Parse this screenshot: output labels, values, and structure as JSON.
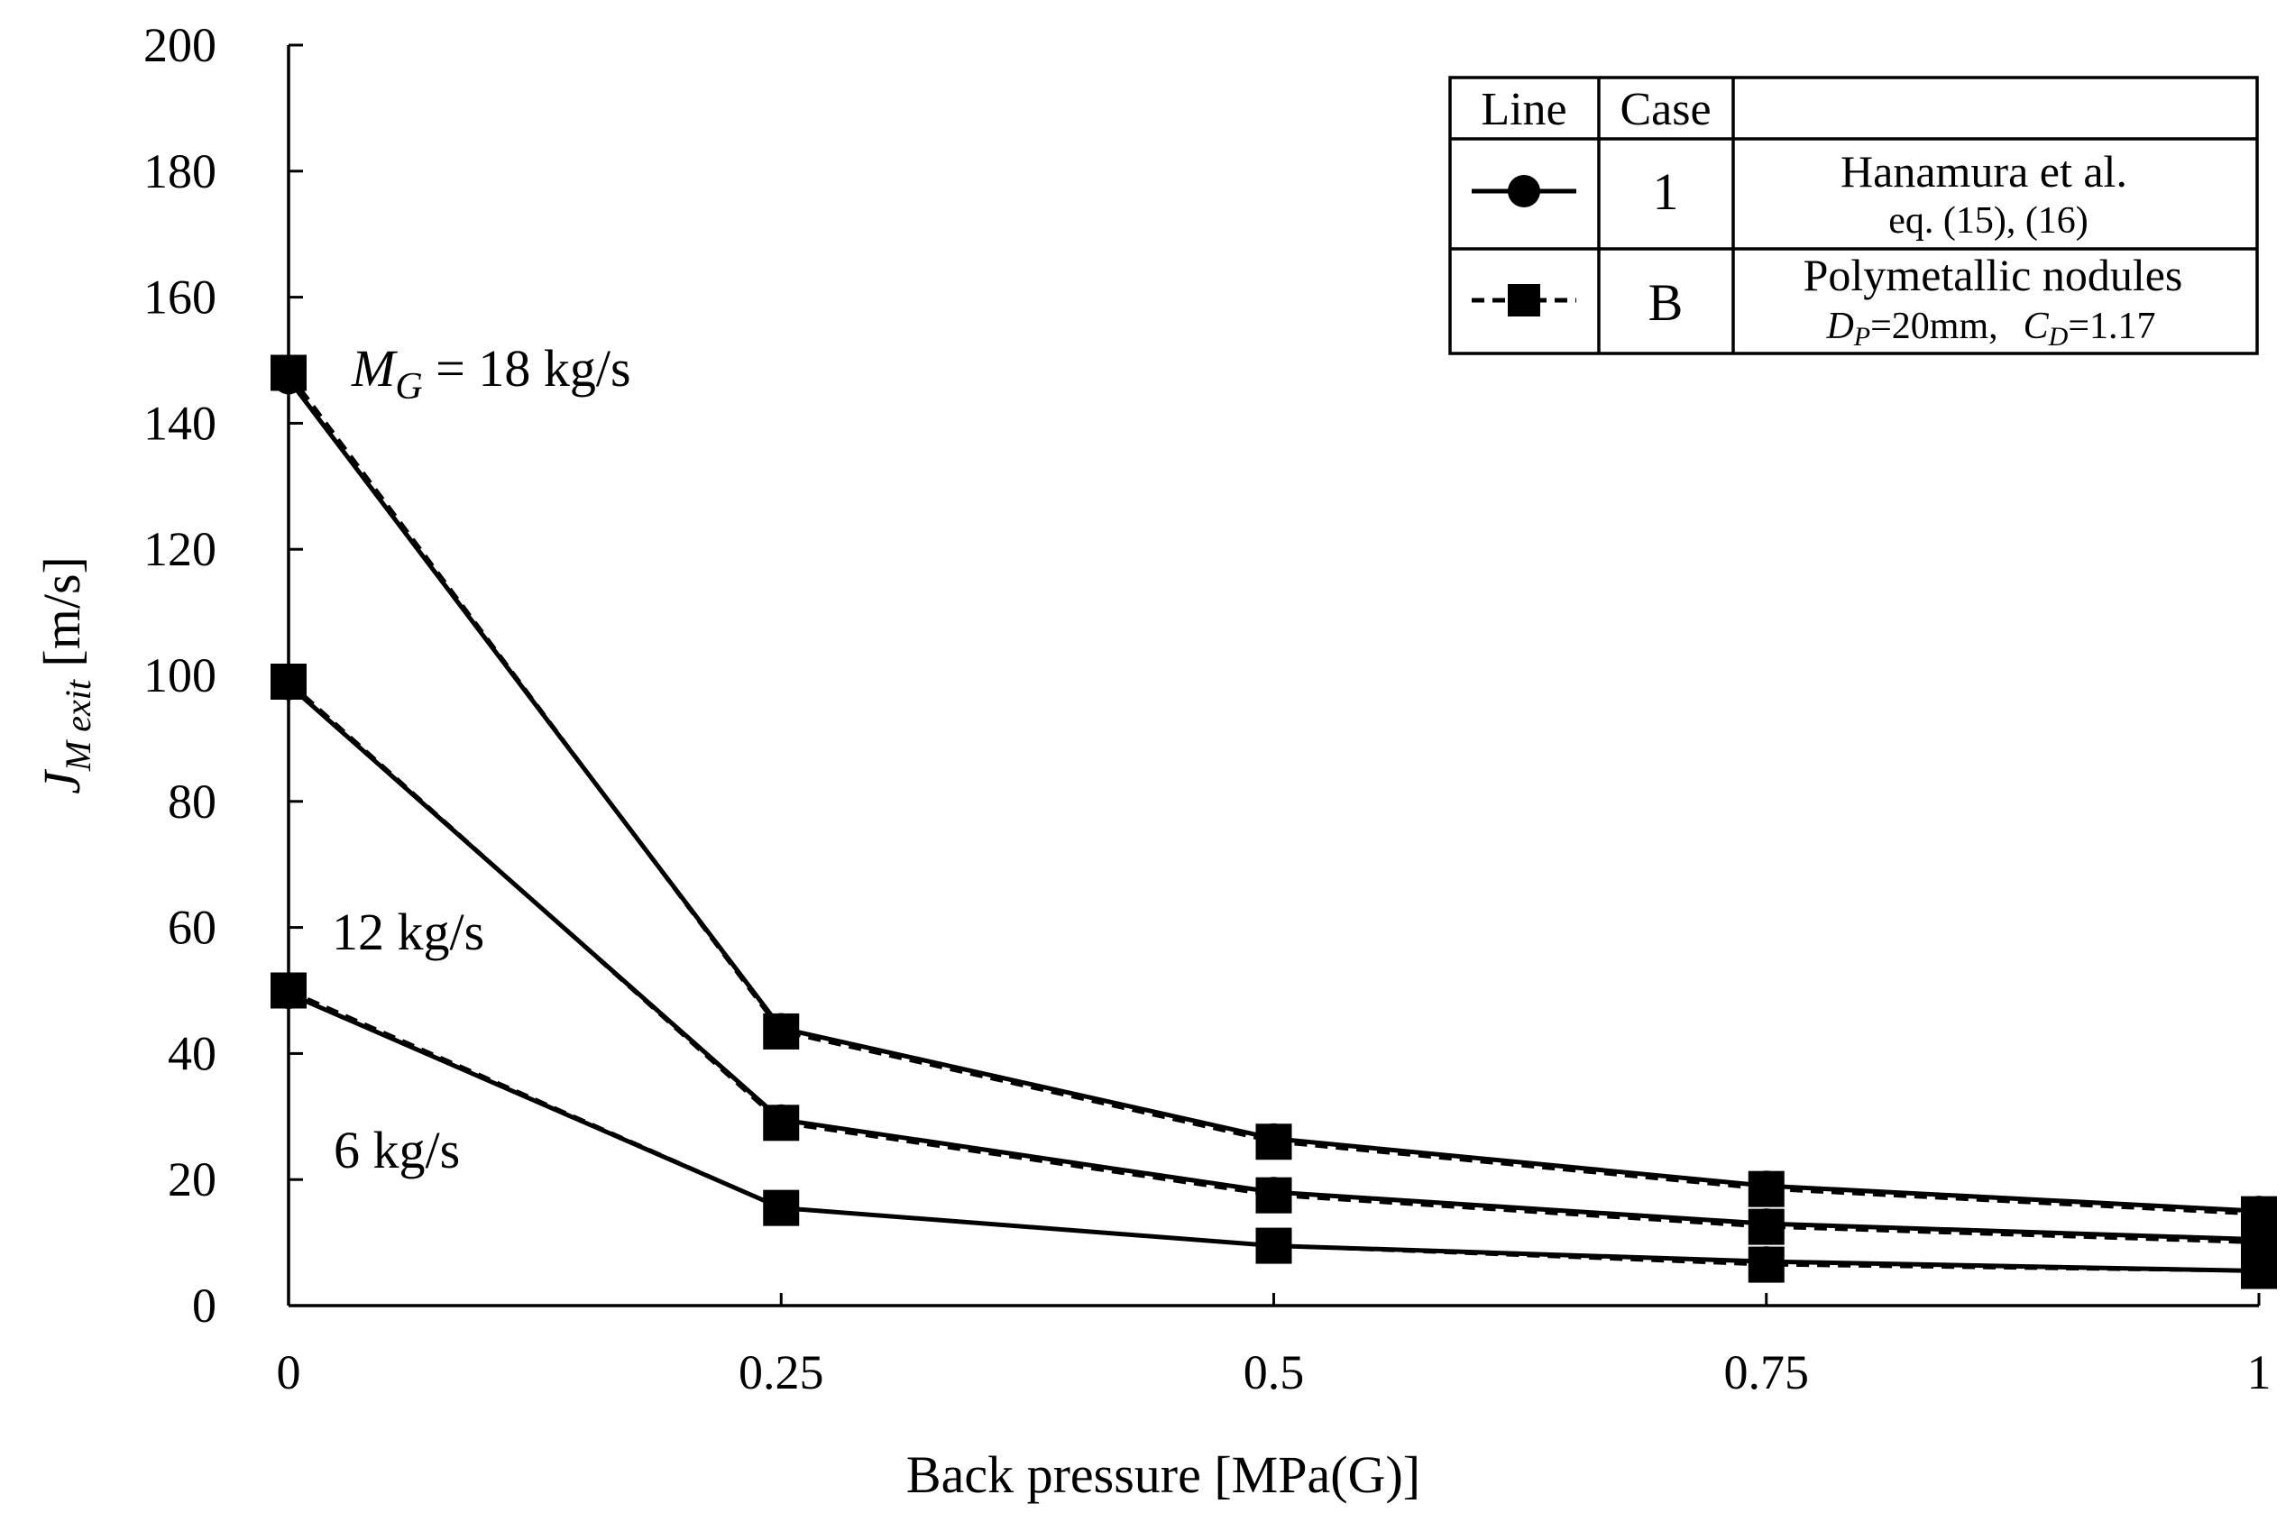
{
  "chart_data": {
    "type": "line",
    "title": "",
    "xlabel": "Back pressure [MPa(G)]",
    "ylabel": {
      "symbol": "J",
      "subscript": "M exit",
      "unit": " [m/s]"
    },
    "xlim": [
      0,
      1
    ],
    "ylim": [
      0,
      200
    ],
    "x_ticks": [
      "0",
      "0.25",
      "0.5",
      "0.75",
      "1"
    ],
    "x_tick_values": [
      0,
      0.25,
      0.5,
      0.75,
      1
    ],
    "y_ticks": [
      "0",
      "20",
      "40",
      "60",
      "80",
      "100",
      "120",
      "140",
      "160",
      "180",
      "200"
    ],
    "y_tick_values": [
      0,
      20,
      40,
      60,
      80,
      100,
      120,
      140,
      160,
      180,
      200
    ],
    "grid": false,
    "x": [
      0,
      0.25,
      0.5,
      0.75,
      1
    ],
    "series": [
      {
        "name": "Case 1, M_G = 18 kg/s",
        "case": "1",
        "style": "solid",
        "marker": "circle",
        "values": [
          147,
          44,
          26.5,
          19,
          15
        ]
      },
      {
        "name": "Case B, M_G = 18 kg/s",
        "case": "B",
        "style": "dashed",
        "marker": "square",
        "values": [
          148,
          43.5,
          26,
          18.5,
          14.5
        ]
      },
      {
        "name": "Case 1, M_G = 12 kg/s",
        "case": "1",
        "style": "solid",
        "marker": "circle",
        "values": [
          98.5,
          29.5,
          18,
          13,
          10.5
        ]
      },
      {
        "name": "Case B, M_G = 12 kg/s",
        "case": "B",
        "style": "dashed",
        "marker": "square",
        "values": [
          99,
          29,
          17.5,
          12.5,
          10
        ]
      },
      {
        "name": "Case 1, M_G = 6 kg/s",
        "case": "1",
        "style": "solid",
        "marker": "circle",
        "values": [
          49.5,
          15.5,
          9.5,
          7,
          5.5
        ]
      },
      {
        "name": "Case B, M_G = 6 kg/s",
        "case": "B",
        "style": "dashed",
        "marker": "square",
        "values": [
          50,
          15.5,
          9.5,
          6.5,
          5.5
        ]
      }
    ],
    "annotations": {
      "m18_symbol": "M",
      "m18_sub": "G",
      "m18_text": " = 18 kg/s",
      "m12_text": "12 kg/s",
      "m6_text": "6 kg/s"
    },
    "legend": {
      "placement": "top-right",
      "header_line": "Line",
      "header_case": "Case",
      "rows": [
        {
          "case": "1",
          "title": "Hanamura et al.",
          "detail": "eq. (15), (16)"
        },
        {
          "case": "B",
          "title": "Polymetallic  nodules",
          "dp_symbol": "D",
          "dp_sub": "P",
          "dp_value": "=20mm,",
          "cd_symbol": "C",
          "cd_sub": "D",
          "cd_value": "=1.17"
        }
      ]
    }
  }
}
